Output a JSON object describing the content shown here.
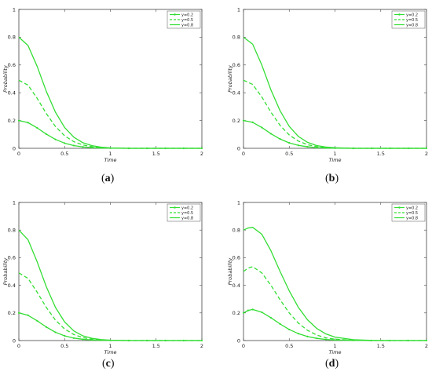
{
  "chart_data": [
    {
      "type": "line",
      "panel_label": "a",
      "xlabel": "Time",
      "ylabel": "Probability",
      "xlim": [
        0,
        2
      ],
      "ylim": [
        0,
        1
      ],
      "xticks": [
        "0",
        "0.5",
        "1",
        "1.5",
        "2"
      ],
      "yticks": [
        "0",
        "0.2",
        "0.4",
        "0.6",
        "0.8",
        "1"
      ],
      "legend_position": "top-right",
      "grid": false,
      "x": [
        0,
        0.1,
        0.2,
        0.3,
        0.4,
        0.5,
        0.6,
        0.7,
        0.8,
        0.9,
        1.0,
        1.2,
        1.4,
        1.6,
        1.8,
        2.0
      ],
      "series": [
        {
          "name": "y=0.2",
          "color": "#33dd33",
          "style": "solid-marker",
          "values": [
            0.2,
            0.185,
            0.147,
            0.102,
            0.064,
            0.037,
            0.02,
            0.01,
            0.005,
            0.002,
            0.001,
            0.0,
            0.0,
            0.0,
            0.0,
            0.0
          ]
        },
        {
          "name": "y=0.5",
          "color": "#33dd33",
          "style": "dashed",
          "values": [
            0.49,
            0.455,
            0.36,
            0.25,
            0.157,
            0.09,
            0.048,
            0.024,
            0.011,
            0.005,
            0.002,
            0.0,
            0.0,
            0.0,
            0.0,
            0.0
          ]
        },
        {
          "name": "y=0.8",
          "color": "#33dd33",
          "style": "solid",
          "values": [
            0.8,
            0.74,
            0.59,
            0.41,
            0.26,
            0.15,
            0.08,
            0.04,
            0.019,
            0.008,
            0.003,
            0.0,
            0.0,
            0.0,
            0.0,
            0.0
          ]
        }
      ]
    },
    {
      "type": "line",
      "panel_label": "b",
      "xlabel": "Time",
      "ylabel": "Probability",
      "xlim": [
        0,
        2
      ],
      "ylim": [
        0,
        1
      ],
      "xticks": [
        "0",
        "0.5",
        "1",
        "1.5",
        "2"
      ],
      "yticks": [
        "0",
        "0.2",
        "0.4",
        "0.6",
        "0.8",
        "1"
      ],
      "legend_position": "top-right",
      "grid": false,
      "x": [
        0,
        0.1,
        0.2,
        0.3,
        0.4,
        0.5,
        0.6,
        0.7,
        0.8,
        0.9,
        1.0,
        1.2,
        1.4,
        1.6,
        1.8,
        2.0
      ],
      "series": [
        {
          "name": "y=0.2",
          "color": "#33dd33",
          "style": "solid-marker",
          "values": [
            0.2,
            0.187,
            0.15,
            0.105,
            0.067,
            0.039,
            0.021,
            0.011,
            0.005,
            0.002,
            0.001,
            0.0,
            0.0,
            0.0,
            0.0,
            0.0
          ]
        },
        {
          "name": "y=0.5",
          "color": "#33dd33",
          "style": "dashed",
          "values": [
            0.49,
            0.46,
            0.37,
            0.26,
            0.165,
            0.096,
            0.052,
            0.026,
            0.012,
            0.005,
            0.002,
            0.0,
            0.0,
            0.0,
            0.0,
            0.0
          ]
        },
        {
          "name": "y=0.8",
          "color": "#33dd33",
          "style": "solid",
          "values": [
            0.8,
            0.75,
            0.6,
            0.42,
            0.27,
            0.158,
            0.085,
            0.043,
            0.02,
            0.009,
            0.004,
            0.0,
            0.0,
            0.0,
            0.0,
            0.0
          ]
        }
      ]
    },
    {
      "type": "line",
      "panel_label": "c",
      "xlabel": "Time",
      "ylabel": "Probability",
      "xlim": [
        0,
        2
      ],
      "ylim": [
        0,
        1
      ],
      "xticks": [
        "0",
        "0.5",
        "1",
        "1.5",
        "2"
      ],
      "yticks": [
        "0",
        "0.2",
        "0.4",
        "0.6",
        "0.8",
        "1"
      ],
      "legend_position": "top-right",
      "grid": false,
      "x": [
        0,
        0.1,
        0.2,
        0.3,
        0.4,
        0.5,
        0.6,
        0.7,
        0.8,
        0.9,
        1.0,
        1.2,
        1.4,
        1.6,
        1.8,
        2.0
      ],
      "series": [
        {
          "name": "y=0.2",
          "color": "#33dd33",
          "style": "solid-marker",
          "values": [
            0.2,
            0.183,
            0.143,
            0.098,
            0.06,
            0.034,
            0.018,
            0.009,
            0.004,
            0.002,
            0.001,
            0.0,
            0.0,
            0.0,
            0.0,
            0.0
          ]
        },
        {
          "name": "y=0.5",
          "color": "#33dd33",
          "style": "dashed",
          "values": [
            0.49,
            0.45,
            0.35,
            0.24,
            0.148,
            0.084,
            0.044,
            0.021,
            0.01,
            0.004,
            0.002,
            0.0,
            0.0,
            0.0,
            0.0,
            0.0
          ]
        },
        {
          "name": "y=0.8",
          "color": "#33dd33",
          "style": "solid",
          "values": [
            0.8,
            0.73,
            0.57,
            0.39,
            0.24,
            0.135,
            0.07,
            0.034,
            0.016,
            0.007,
            0.003,
            0.0,
            0.0,
            0.0,
            0.0,
            0.0
          ]
        }
      ]
    },
    {
      "type": "line",
      "panel_label": "d",
      "xlabel": "Time",
      "ylabel": "Probability",
      "xlim": [
        0,
        2
      ],
      "ylim": [
        0,
        1
      ],
      "xticks": [
        "0",
        "0.5",
        "1",
        "1.5",
        "2"
      ],
      "yticks": [
        "0",
        "0.2",
        "0.4",
        "0.6",
        "0.8",
        "1"
      ],
      "legend_position": "top-right",
      "grid": false,
      "x": [
        0,
        0.05,
        0.1,
        0.2,
        0.3,
        0.4,
        0.5,
        0.6,
        0.7,
        0.8,
        0.9,
        1.0,
        1.2,
        1.4,
        1.6,
        1.8,
        2.0
      ],
      "series": [
        {
          "name": "y=0.2",
          "color": "#33dd33",
          "style": "solid-marker",
          "values": [
            0.2,
            0.218,
            0.225,
            0.205,
            0.165,
            0.12,
            0.08,
            0.05,
            0.029,
            0.016,
            0.008,
            0.004,
            0.001,
            0.0,
            0.0,
            0.0,
            0.0
          ]
        },
        {
          "name": "y=0.5",
          "color": "#33dd33",
          "style": "dashed",
          "values": [
            0.5,
            0.525,
            0.535,
            0.49,
            0.4,
            0.295,
            0.2,
            0.126,
            0.074,
            0.04,
            0.02,
            0.01,
            0.002,
            0.0,
            0.0,
            0.0,
            0.0
          ]
        },
        {
          "name": "y=0.8",
          "color": "#33dd33",
          "style": "solid",
          "values": [
            0.8,
            0.815,
            0.82,
            0.77,
            0.65,
            0.5,
            0.36,
            0.24,
            0.15,
            0.088,
            0.048,
            0.025,
            0.006,
            0.001,
            0.0,
            0.0,
            0.0
          ]
        }
      ]
    }
  ]
}
